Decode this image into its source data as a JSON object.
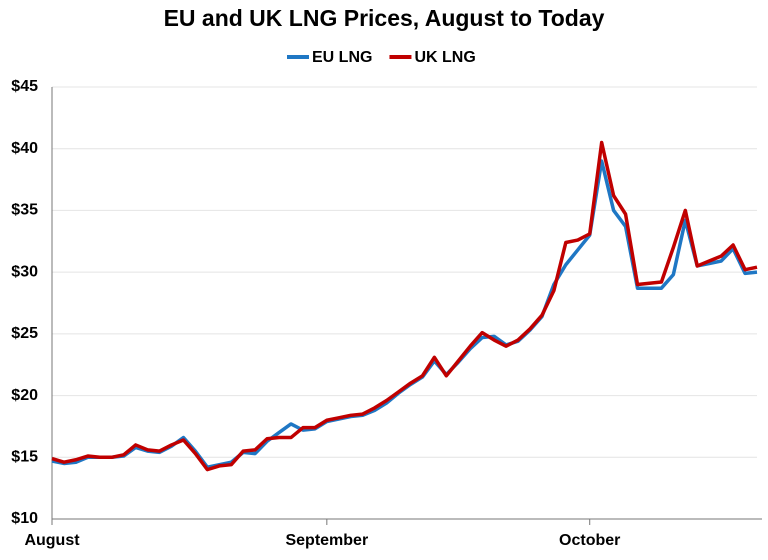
{
  "chart_data": {
    "type": "line",
    "title": "EU and UK LNG Prices, August to Today",
    "categories": [
      "August",
      null,
      null,
      null,
      null,
      null,
      null,
      null,
      null,
      null,
      null,
      null,
      null,
      null,
      null,
      null,
      null,
      null,
      null,
      null,
      null,
      null,
      null,
      "September",
      null,
      null,
      null,
      null,
      null,
      null,
      null,
      null,
      null,
      null,
      null,
      null,
      null,
      null,
      null,
      null,
      null,
      null,
      null,
      null,
      null,
      "October",
      null,
      null,
      null,
      null,
      null,
      null,
      null,
      null,
      null,
      null,
      null,
      null,
      null,
      null
    ],
    "series": [
      {
        "name": "EU LNG",
        "color": "#1f77c4",
        "values": [
          14.7,
          14.5,
          14.6,
          15.0,
          15.0,
          15.0,
          15.1,
          15.8,
          15.5,
          15.4,
          15.9,
          16.6,
          15.5,
          14.2,
          14.4,
          14.6,
          15.4,
          15.3,
          16.3,
          17.0,
          17.7,
          17.2,
          17.3,
          17.9,
          18.1,
          18.3,
          18.4,
          18.8,
          19.4,
          20.2,
          20.9,
          21.5,
          22.8,
          21.7,
          22.7,
          23.8,
          24.7,
          24.8,
          24.1,
          24.4,
          25.3,
          26.4,
          29.0,
          30.6,
          31.8,
          33.0,
          39.0,
          35.0,
          33.7,
          28.7,
          28.7,
          28.7,
          29.8,
          34.2,
          30.5,
          30.7,
          30.9,
          31.9,
          29.9,
          30.0
        ]
      },
      {
        "name": "UK LNG",
        "color": "#c00000",
        "values": [
          14.9,
          14.6,
          14.8,
          15.1,
          15.0,
          15.0,
          15.2,
          16.0,
          15.6,
          15.5,
          16.0,
          16.4,
          15.3,
          14.0,
          14.3,
          14.4,
          15.5,
          15.6,
          16.5,
          16.6,
          16.6,
          17.4,
          17.4,
          18.0,
          18.2,
          18.4,
          18.5,
          19.0,
          19.6,
          20.3,
          21.0,
          21.6,
          23.1,
          21.6,
          22.8,
          24.0,
          25.1,
          24.5,
          24.0,
          24.5,
          25.4,
          26.5,
          28.5,
          32.4,
          32.6,
          33.1,
          40.5,
          36.2,
          34.7,
          29.0,
          29.1,
          29.2,
          32.0,
          35.0,
          30.5,
          30.9,
          31.3,
          32.2,
          30.2,
          30.4
        ]
      }
    ],
    "ylim": [
      10,
      45
    ],
    "yticks": [
      {
        "value": 10,
        "label": "$10"
      },
      {
        "value": 15,
        "label": "$15"
      },
      {
        "value": 20,
        "label": "$20"
      },
      {
        "value": 25,
        "label": "$25"
      },
      {
        "value": 30,
        "label": "$30"
      },
      {
        "value": 35,
        "label": "$35"
      },
      {
        "value": 40,
        "label": "$40"
      },
      {
        "value": 45,
        "label": "$45"
      }
    ],
    "grid": true,
    "legend": "top"
  }
}
